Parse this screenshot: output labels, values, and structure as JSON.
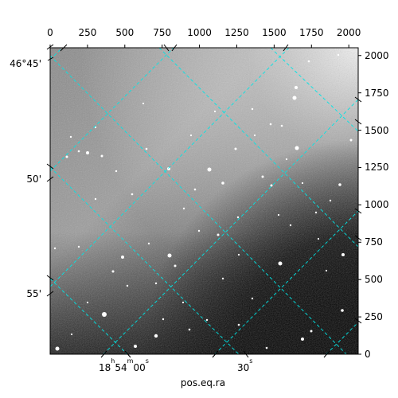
{
  "figure": {
    "xlabel": "pos.eq.ra",
    "top_axis_ticks": [
      "0",
      "250",
      "500",
      "750",
      "1000",
      "1250",
      "1500",
      "1750",
      "2000"
    ],
    "right_axis_ticks": [
      "0",
      "250",
      "500",
      "750",
      "1000",
      "1250",
      "1500",
      "1750",
      "2000"
    ],
    "left_axis_ticks": [
      {
        "deg": "46",
        "min": "45",
        "text": "46°45'"
      },
      {
        "text": "50'"
      },
      {
        "text": "55'"
      }
    ],
    "bottom_axis_ticks": [
      {
        "h": "18",
        "m": "54",
        "s": "00"
      },
      {
        "s": "30"
      }
    ],
    "colors": {
      "grid": "#00e5e5",
      "axes": "#000000",
      "background_bright": "#b8b8b8",
      "background_dark": "#000000"
    },
    "image": "grayscale astronomical sky image with stars and RA/Dec coordinate grid"
  }
}
